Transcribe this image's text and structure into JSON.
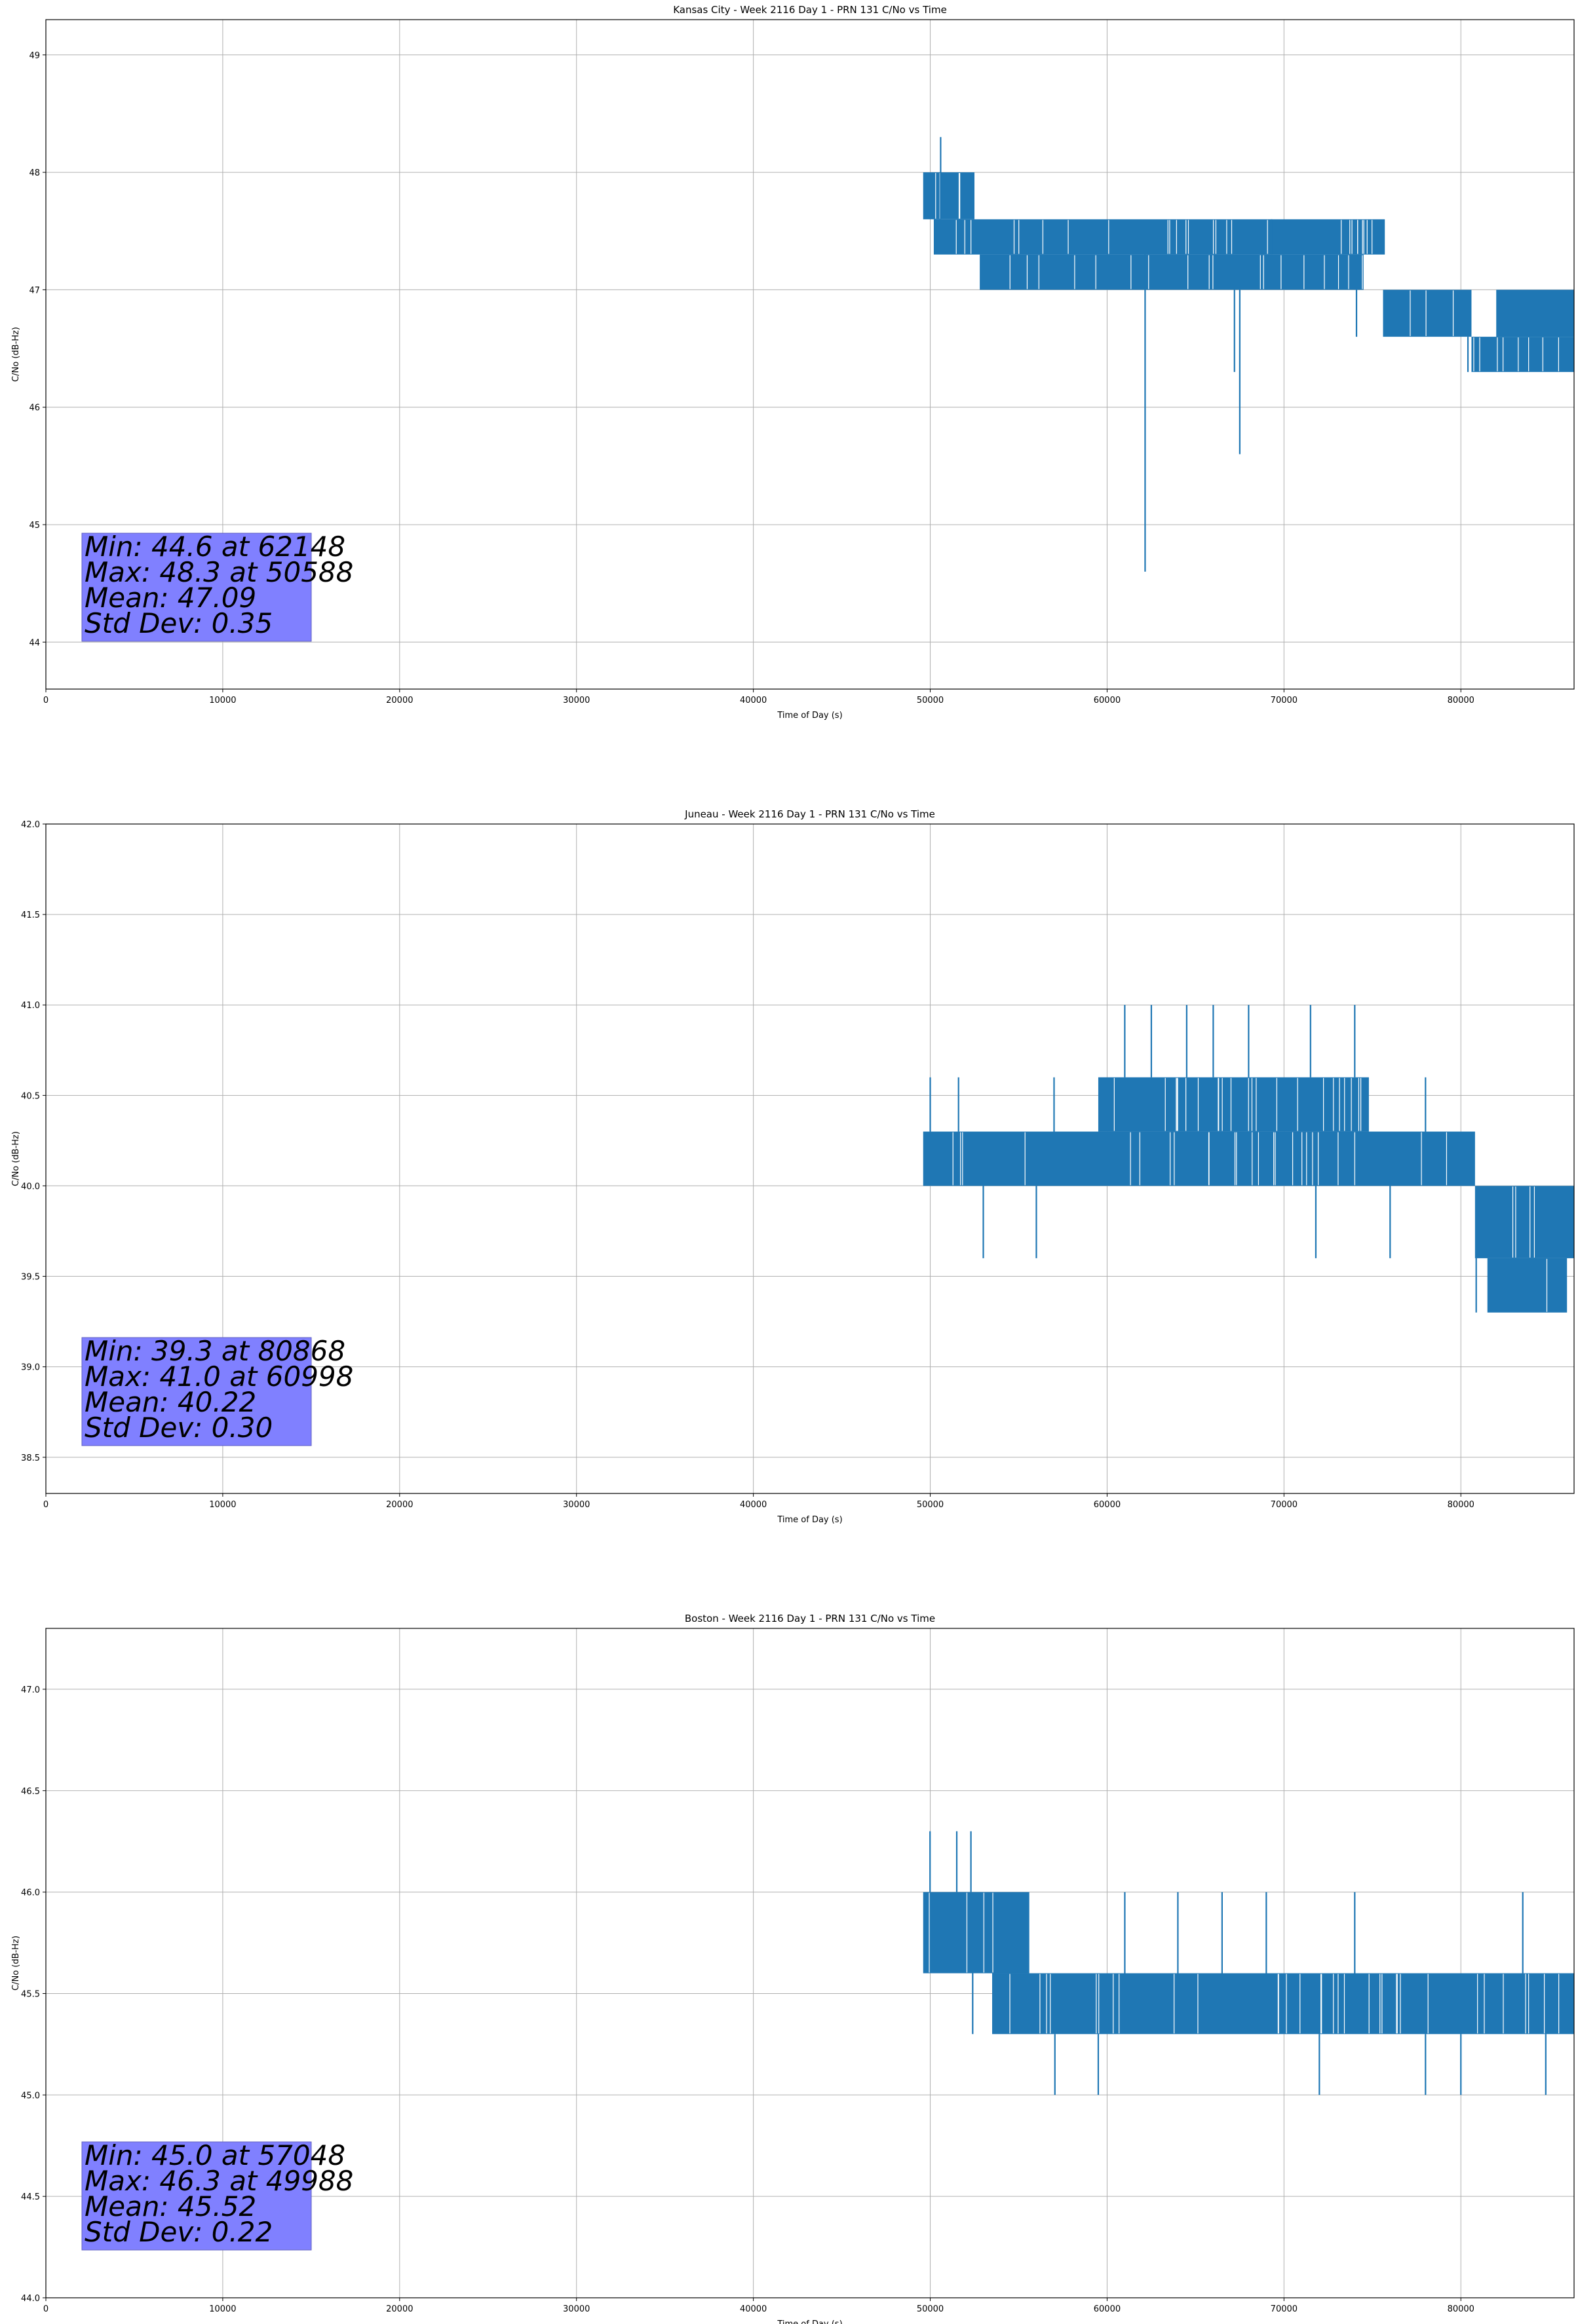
{
  "figure": {
    "panel_names": [
      "kansas-city",
      "juneau",
      "boston"
    ]
  },
  "chart_data": [
    {
      "type": "line",
      "title": "Kansas City - Week 2116 Day 1 - PRN 131 C/No vs Time",
      "xlabel": "Time of Day (s)",
      "ylabel": "C/No (dB-Hz)",
      "xlim": [
        0,
        86400
      ],
      "ylim": [
        43.6,
        49.3
      ],
      "xticks": [
        0,
        10000,
        20000,
        30000,
        40000,
        50000,
        60000,
        70000,
        80000
      ],
      "yticks": [
        44,
        45,
        46,
        47,
        48,
        49
      ],
      "ytick_decimals": 0,
      "grid": true,
      "color": "#1f77b4",
      "stats": [
        "Min: 44.6 at 62148",
        "Max: 48.3 at 50588",
        "Mean: 47.09",
        "Std Dev: 0.35"
      ],
      "stats_box_color": "#8080ff",
      "series": [
        {
          "x_start": 49600,
          "x_end": 86400,
          "bands": [
            {
              "x": [
                49600,
                52500
              ],
              "y": [
                47.6,
                48.0
              ]
            },
            {
              "x": [
                50200,
                54000
              ],
              "y": [
                47.3,
                47.6
              ]
            },
            {
              "x": [
                52800,
                74500
              ],
              "y": [
                47.0,
                47.3
              ]
            },
            {
              "x": [
                54000,
                75700
              ],
              "y": [
                47.3,
                47.6
              ]
            },
            {
              "x": [
                75600,
                80600
              ],
              "y": [
                46.6,
                47.0
              ]
            },
            {
              "x": [
                80600,
                86400
              ],
              "y": [
                46.3,
                46.6
              ]
            },
            {
              "x": [
                82000,
                86400
              ],
              "y": [
                46.6,
                47.0
              ]
            }
          ],
          "spikes": [
            {
              "x": 50588,
              "y": [
                47.6,
                48.3
              ]
            },
            {
              "x": 62148,
              "y": [
                44.6,
                47.3
              ]
            },
            {
              "x": 67200,
              "y": [
                46.3,
                47.0
              ]
            },
            {
              "x": 67500,
              "y": [
                45.6,
                47.0
              ]
            },
            {
              "x": 69300,
              "y": [
                47.3,
                47.6
              ]
            },
            {
              "x": 74100,
              "y": [
                46.6,
                47.0
              ]
            },
            {
              "x": 80400,
              "y": [
                46.3,
                46.6
              ]
            }
          ]
        }
      ]
    },
    {
      "type": "line",
      "title": "Juneau - Week 2116 Day 1 - PRN 131 C/No vs Time",
      "xlabel": "Time of Day (s)",
      "ylabel": "C/No (dB-Hz)",
      "xlim": [
        0,
        86400
      ],
      "ylim": [
        38.3,
        42.0
      ],
      "xticks": [
        0,
        10000,
        20000,
        30000,
        40000,
        50000,
        60000,
        70000,
        80000
      ],
      "yticks": [
        38.5,
        39.0,
        39.5,
        40.0,
        40.5,
        41.0,
        41.5,
        42.0
      ],
      "ytick_decimals": 1,
      "grid": true,
      "color": "#1f77b4",
      "stats": [
        "Min: 39.3 at 80868",
        "Max: 41.0 at 60998",
        "Mean: 40.22",
        "Std Dev: 0.30"
      ],
      "stats_box_color": "#8080ff",
      "series": [
        {
          "x_start": 49600,
          "x_end": 86400,
          "bands": [
            {
              "x": [
                49600,
                80800
              ],
              "y": [
                40.0,
                40.3
              ]
            },
            {
              "x": [
                59500,
                74800
              ],
              "y": [
                40.3,
                40.6
              ]
            },
            {
              "x": [
                80800,
                86400
              ],
              "y": [
                39.6,
                40.0
              ]
            },
            {
              "x": [
                81500,
                86000
              ],
              "y": [
                39.3,
                39.6
              ]
            }
          ],
          "spikes": [
            {
              "x": 50000,
              "y": [
                40.3,
                40.6
              ]
            },
            {
              "x": 51600,
              "y": [
                40.3,
                40.6
              ]
            },
            {
              "x": 53000,
              "y": [
                39.6,
                40.0
              ]
            },
            {
              "x": 56000,
              "y": [
                39.6,
                40.0
              ]
            },
            {
              "x": 57000,
              "y": [
                40.3,
                40.6
              ]
            },
            {
              "x": 60998,
              "y": [
                40.6,
                41.0
              ]
            },
            {
              "x": 62500,
              "y": [
                40.6,
                41.0
              ]
            },
            {
              "x": 64500,
              "y": [
                40.6,
                41.0
              ]
            },
            {
              "x": 66000,
              "y": [
                40.6,
                41.0
              ]
            },
            {
              "x": 68000,
              "y": [
                40.6,
                41.0
              ]
            },
            {
              "x": 71500,
              "y": [
                40.6,
                41.0
              ]
            },
            {
              "x": 74000,
              "y": [
                40.6,
                41.0
              ]
            },
            {
              "x": 71800,
              "y": [
                39.6,
                40.0
              ]
            },
            {
              "x": 76000,
              "y": [
                39.6,
                40.0
              ]
            },
            {
              "x": 78000,
              "y": [
                40.3,
                40.6
              ]
            },
            {
              "x": 80868,
              "y": [
                39.3,
                39.6
              ]
            }
          ]
        }
      ]
    },
    {
      "type": "line",
      "title": "Boston - Week 2116 Day 1 - PRN 131 C/No vs Time",
      "xlabel": "Time of Day (s)",
      "ylabel": "C/No (dB-Hz)",
      "xlim": [
        0,
        86400
      ],
      "ylim": [
        44.0,
        47.3
      ],
      "xticks": [
        0,
        10000,
        20000,
        30000,
        40000,
        50000,
        60000,
        70000,
        80000
      ],
      "yticks": [
        44.0,
        44.5,
        45.0,
        45.5,
        46.0,
        46.5,
        47.0
      ],
      "ytick_decimals": 1,
      "grid": true,
      "color": "#1f77b4",
      "stats": [
        "Min: 45.0 at 57048",
        "Max: 46.3 at 49988",
        "Mean: 45.52",
        "Std Dev: 0.22"
      ],
      "stats_box_color": "#8080ff",
      "series": [
        {
          "x_start": 49600,
          "x_end": 86400,
          "bands": [
            {
              "x": [
                49600,
                55600
              ],
              "y": [
                45.6,
                46.0
              ]
            },
            {
              "x": [
                53500,
                86400
              ],
              "y": [
                45.3,
                45.6
              ]
            }
          ],
          "spikes": [
            {
              "x": 49988,
              "y": [
                46.0,
                46.3
              ]
            },
            {
              "x": 51500,
              "y": [
                46.0,
                46.3
              ]
            },
            {
              "x": 52300,
              "y": [
                46.0,
                46.3
              ]
            },
            {
              "x": 52400,
              "y": [
                45.3,
                45.6
              ]
            },
            {
              "x": 57048,
              "y": [
                45.0,
                45.3
              ]
            },
            {
              "x": 59500,
              "y": [
                45.0,
                45.3
              ]
            },
            {
              "x": 61000,
              "y": [
                45.6,
                46.0
              ]
            },
            {
              "x": 64000,
              "y": [
                45.6,
                46.0
              ]
            },
            {
              "x": 66500,
              "y": [
                45.6,
                46.0
              ]
            },
            {
              "x": 69000,
              "y": [
                45.6,
                46.0
              ]
            },
            {
              "x": 72000,
              "y": [
                45.0,
                45.3
              ]
            },
            {
              "x": 74000,
              "y": [
                45.6,
                46.0
              ]
            },
            {
              "x": 78000,
              "y": [
                45.0,
                45.3
              ]
            },
            {
              "x": 80000,
              "y": [
                45.0,
                45.3
              ]
            },
            {
              "x": 83500,
              "y": [
                45.6,
                46.0
              ]
            },
            {
              "x": 84800,
              "y": [
                45.0,
                45.3
              ]
            }
          ]
        }
      ]
    }
  ]
}
